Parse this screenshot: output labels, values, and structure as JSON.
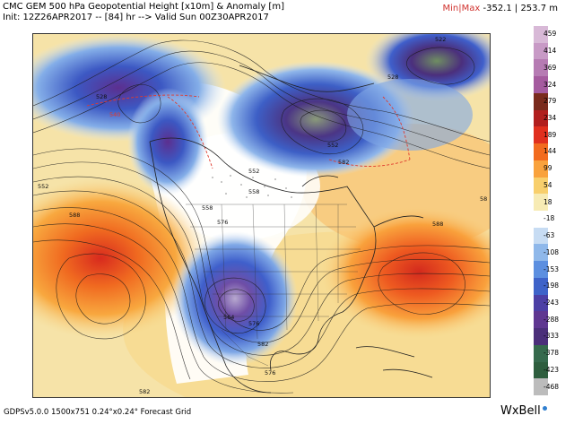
{
  "header": {
    "title": "CMC GEM 500 hPa Geopotential Height [x10m] & Anomaly [m]",
    "init": "Init: 12Z26APR2017 -- [84] hr --> Valid Sun 00Z30APR2017",
    "minmax_label": "Min|Max",
    "minmax_value": "-352.1 | 253.7 m"
  },
  "colorbar": {
    "ticks": [
      "459",
      "414",
      "369",
      "324",
      "279",
      "234",
      "189",
      "144",
      "99",
      "54",
      "18",
      "-18",
      "-63",
      "-108",
      "-153",
      "-198",
      "-243",
      "-288",
      "-333",
      "-378",
      "-423",
      "-468"
    ],
    "colors": [
      "#d8b9d7",
      "#c89ac6",
      "#b67bb3",
      "#a55b9f",
      "#7a2b1d",
      "#b11f1e",
      "#e0301e",
      "#f26b1f",
      "#f9a23d",
      "#f8cf6c",
      "#f7ebb4",
      "#ffffff",
      "#c7dcf3",
      "#8fb8ea",
      "#5c8fe0",
      "#3e63c9",
      "#4c3fa5",
      "#5f3791",
      "#4b2f7a",
      "#366a4d",
      "#2e5e3e",
      "#bcbcbc"
    ]
  },
  "map": {
    "contour_labels": [
      "522",
      "528",
      "540",
      "552",
      "558",
      "558",
      "576",
      "552",
      "582",
      "588",
      "564",
      "576",
      "582",
      "588",
      "552",
      "576",
      "528",
      "582",
      "58"
    ]
  },
  "footer": {
    "left": "GDPSv5.0.0 1500x751 0.24°x0.24° Forecast Grid",
    "brand": "WxBell"
  }
}
